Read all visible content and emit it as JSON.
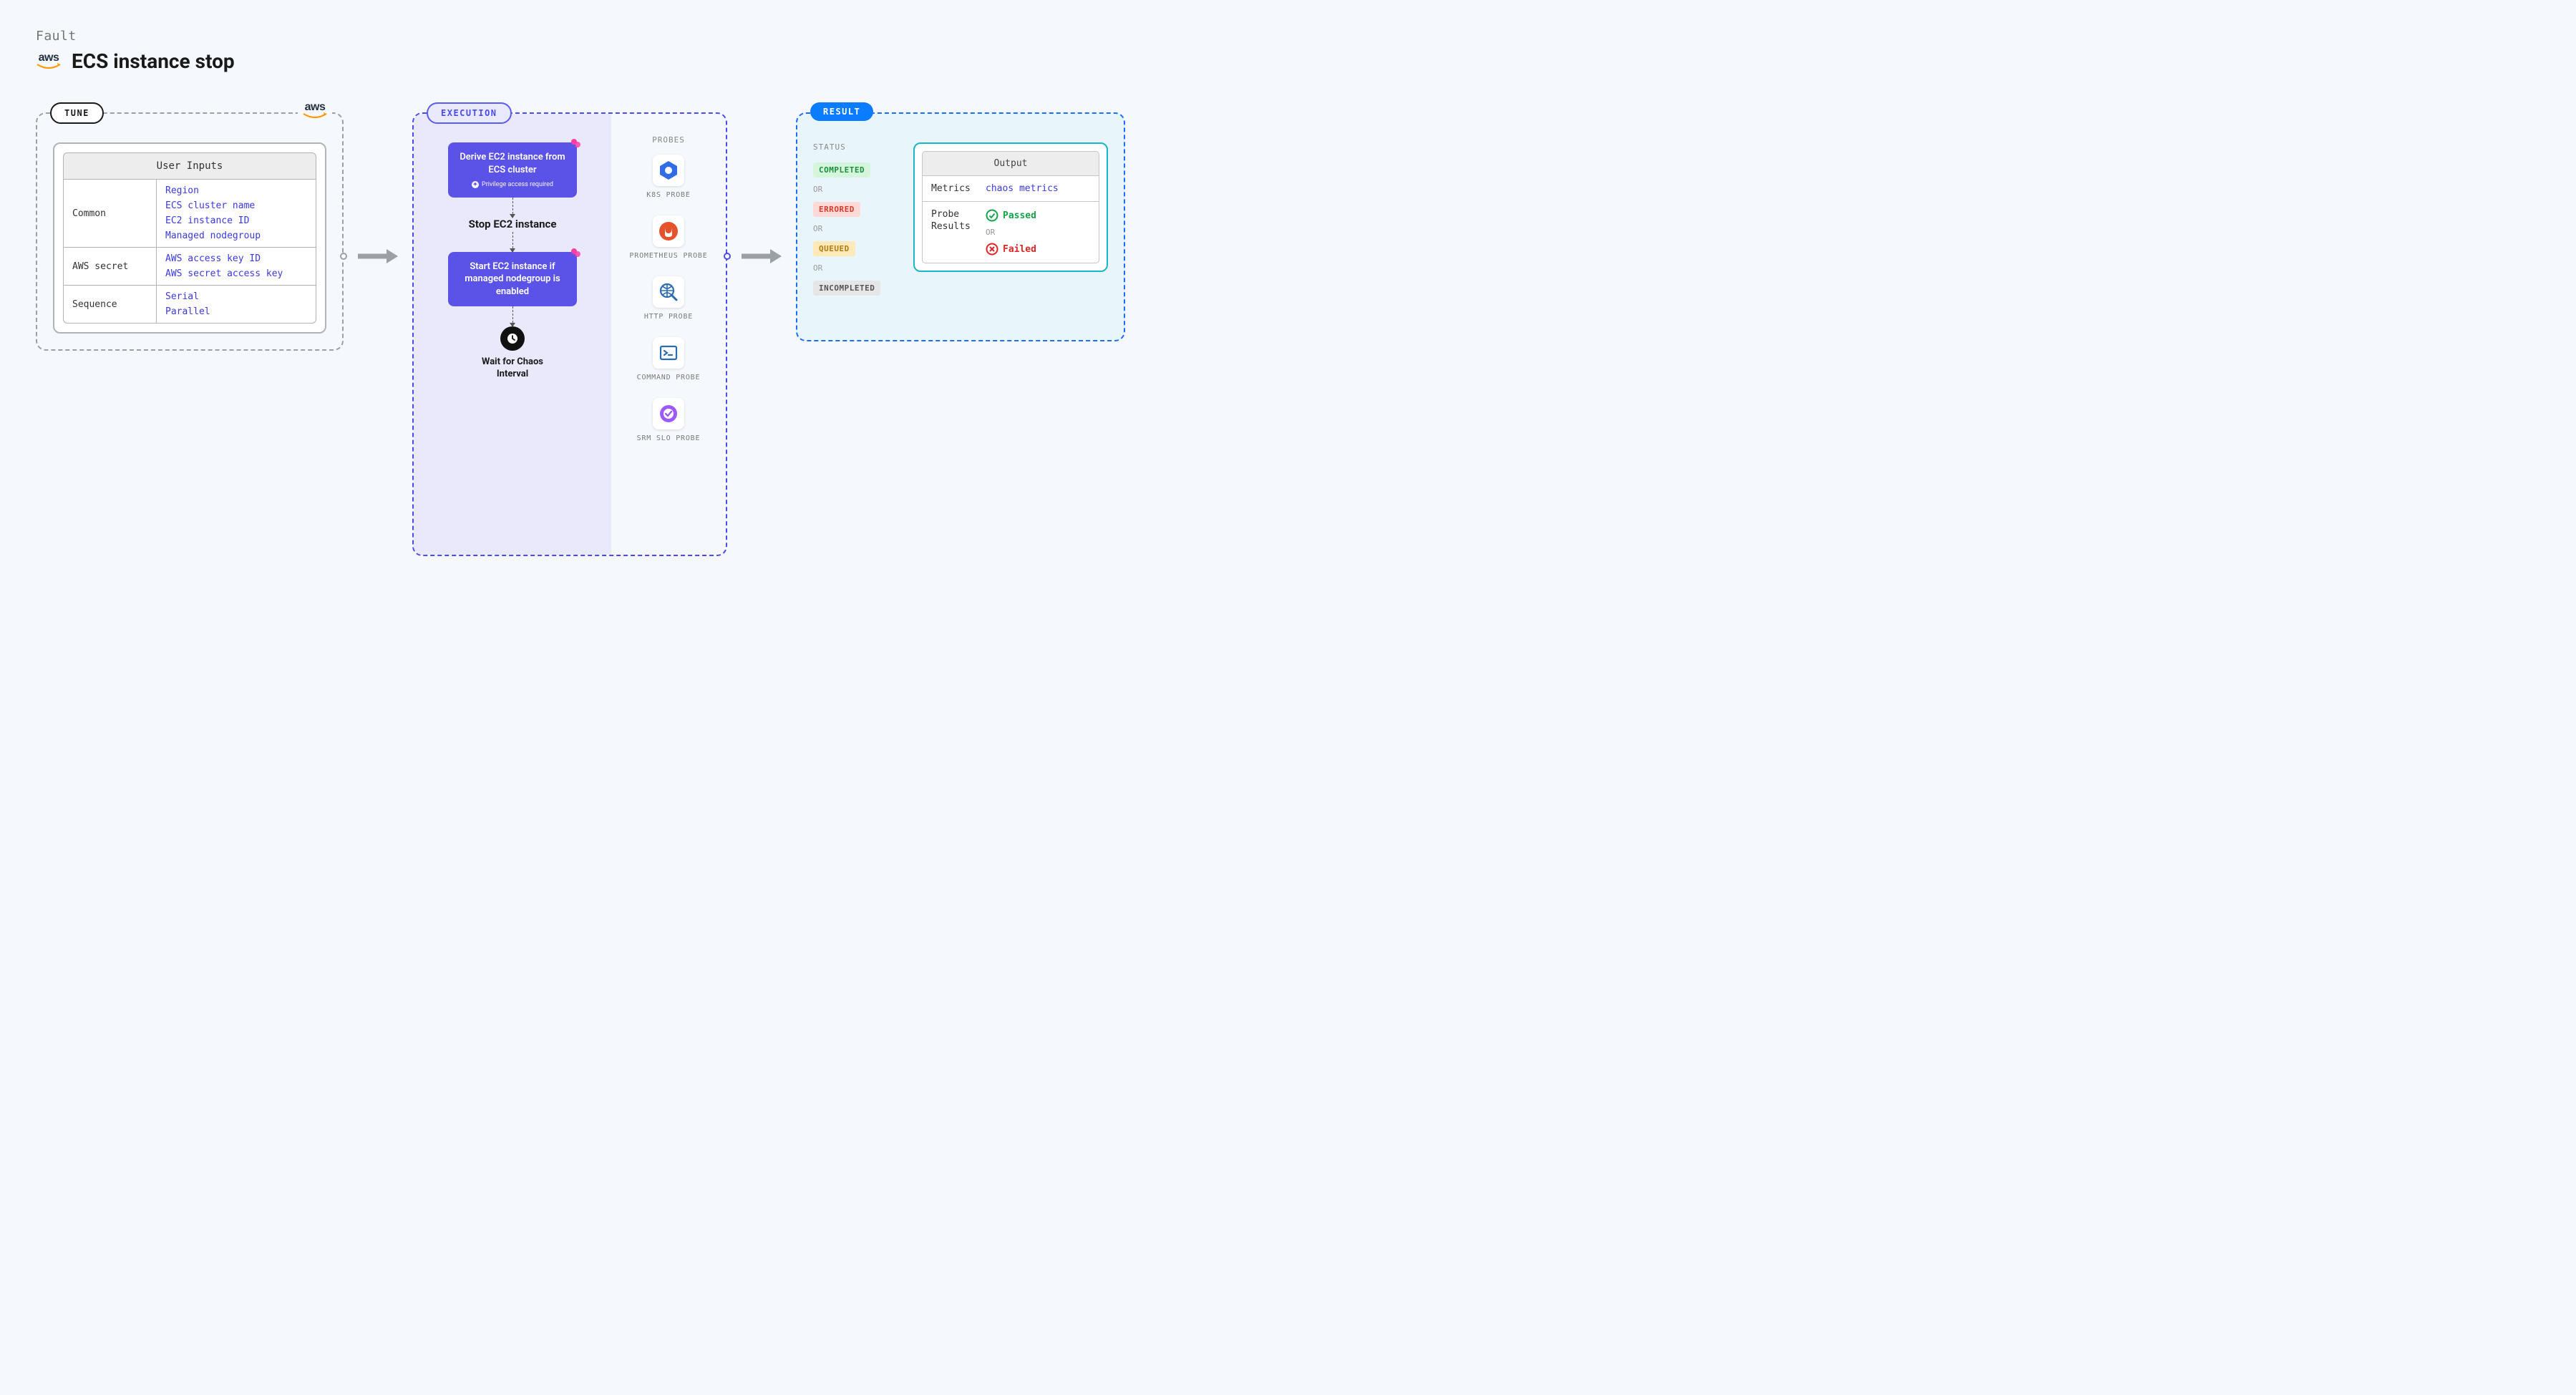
{
  "header": {
    "fault_label": "Fault",
    "title": "ECS instance stop",
    "aws_label": "aws"
  },
  "colors": {
    "page_bg": "#f5f8fc",
    "tune_border": "#9aa0a6",
    "exec_border": "#4a4af0",
    "exec_bg": "#e9e9fb",
    "exec_step_bg": "#5b52e8",
    "result_border": "#1a6dff",
    "result_bg": "#e8f6fb",
    "result_tag_bg": "#0a7cff",
    "link_blue": "#3a3ae0",
    "arrow": "#9aa0a6",
    "aws_smile": "#ff9900",
    "output_card_border": "#19b5c9"
  },
  "tune": {
    "tag": "TUNE",
    "card_title": "User Inputs",
    "groups": [
      {
        "label": "Common",
        "values": [
          "Region",
          "ECS cluster name",
          "EC2 instance ID",
          "Managed nodegroup"
        ]
      },
      {
        "label": "AWS secret",
        "values": [
          "AWS access key ID",
          "AWS secret access key"
        ]
      },
      {
        "label": "Sequence",
        "values": [
          "Serial",
          "Parallel"
        ]
      }
    ]
  },
  "execution": {
    "tag": "EXECUTION",
    "probes_title": "PROBES",
    "steps": [
      {
        "type": "box",
        "text": "Derive EC2 instance from ECS cluster",
        "sub": "Privilege access required",
        "gear": true
      },
      {
        "type": "plain",
        "text": "Stop EC2 instance"
      },
      {
        "type": "box",
        "text": "Start EC2 instance if managed nodegroup is enabled",
        "gear": true
      },
      {
        "type": "wait",
        "text": "Wait for Chaos Interval"
      }
    ],
    "probes": [
      {
        "label": "K8S PROBE",
        "icon": "k8s",
        "color": "#326ce5"
      },
      {
        "label": "PROMETHEUS PROBE",
        "icon": "prometheus",
        "color": "#e6522c"
      },
      {
        "label": "HTTP PROBE",
        "icon": "http",
        "color": "#2b6cb0"
      },
      {
        "label": "COMMAND PROBE",
        "icon": "cmd",
        "color": "#2b6cb0"
      },
      {
        "label": "SRM SLO PROBE",
        "icon": "srm",
        "color": "#9b59ff"
      }
    ]
  },
  "result": {
    "tag": "RESULT",
    "status_title": "STATUS",
    "or_label": "OR",
    "statuses": [
      {
        "text": "COMPLETED",
        "bg": "#d5f5dc",
        "fg": "#1a8f3a"
      },
      {
        "text": "ERRORED",
        "bg": "#ffd9d6",
        "fg": "#d23b2e"
      },
      {
        "text": "QUEUED",
        "bg": "#ffe9b8",
        "fg": "#b07c12"
      },
      {
        "text": "INCOMPLETED",
        "bg": "#e6e6e6",
        "fg": "#555555"
      }
    ],
    "output": {
      "title": "Output",
      "metrics_label": "Metrics",
      "metrics_value": "chaos metrics",
      "probe_results_label": "Probe Results",
      "passed": "Passed",
      "failed": "Failed",
      "or": "OR"
    }
  }
}
